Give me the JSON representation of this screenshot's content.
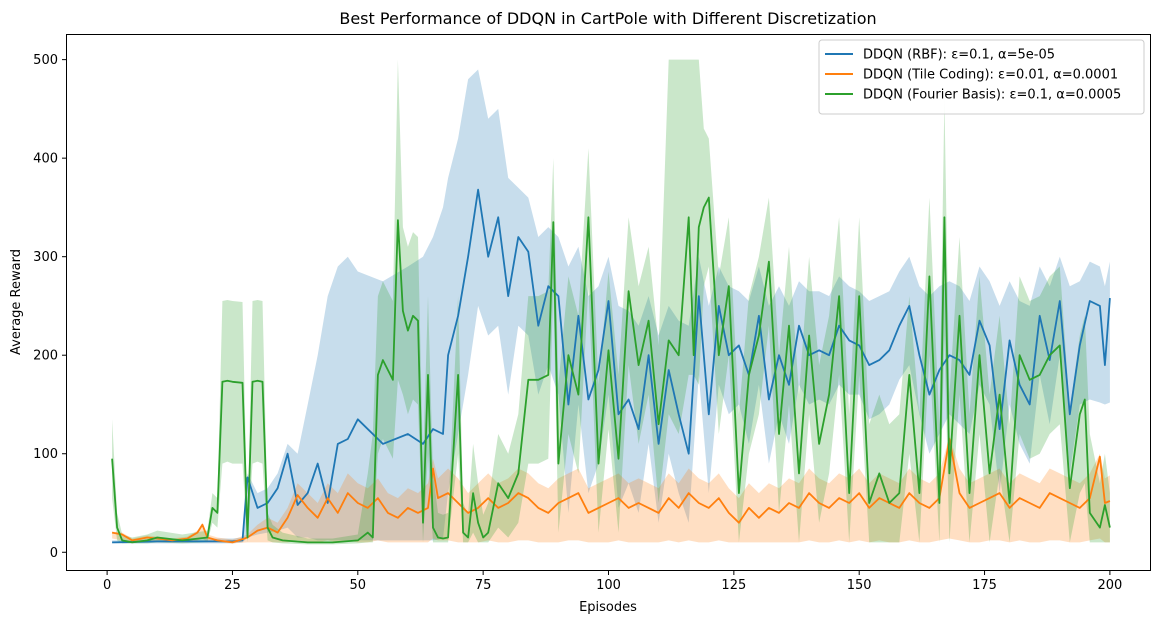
{
  "chart_data": {
    "type": "line",
    "title": "Best Performance of DDQN in CartPole with Different Discretization",
    "xlabel": "Episodes",
    "ylabel": "Average Reward",
    "xlim": [
      -8,
      208
    ],
    "ylim": [
      -18,
      525
    ],
    "xticks": [
      0,
      25,
      50,
      75,
      100,
      125,
      150,
      175,
      200
    ],
    "yticks": [
      0,
      100,
      200,
      300,
      400,
      500
    ],
    "grid": false,
    "legend_position": "top-right",
    "series": [
      {
        "name": "DDQN (RBF): ε=0.1, α=5e-05",
        "color": "#1f77b4",
        "x": [
          1,
          10,
          20,
          25,
          27,
          28,
          30,
          32,
          34,
          36,
          38,
          40,
          42,
          44,
          46,
          48,
          50,
          55,
          60,
          63,
          65,
          67,
          68,
          70,
          72,
          74,
          76,
          78,
          80,
          82,
          84,
          86,
          88,
          90,
          92,
          94,
          96,
          98,
          100,
          102,
          104,
          106,
          108,
          110,
          112,
          114,
          116,
          118,
          120,
          122,
          124,
          126,
          128,
          130,
          132,
          134,
          136,
          138,
          140,
          142,
          144,
          146,
          148,
          150,
          152,
          154,
          156,
          158,
          160,
          162,
          164,
          166,
          168,
          170,
          172,
          174,
          176,
          178,
          180,
          182,
          184,
          186,
          188,
          190,
          192,
          194,
          196,
          198,
          199,
          200
        ],
        "values": [
          10,
          11,
          11,
          11,
          12,
          76,
          45,
          50,
          65,
          100,
          48,
          60,
          90,
          50,
          110,
          115,
          135,
          110,
          120,
          110,
          125,
          120,
          200,
          240,
          300,
          368,
          300,
          340,
          260,
          320,
          305,
          230,
          270,
          260,
          150,
          240,
          155,
          185,
          255,
          140,
          155,
          125,
          200,
          110,
          185,
          140,
          100,
          260,
          140,
          250,
          200,
          210,
          180,
          240,
          155,
          200,
          170,
          230,
          200,
          205,
          200,
          230,
          215,
          210,
          190,
          195,
          205,
          230,
          250,
          200,
          160,
          185,
          200,
          195,
          180,
          235,
          210,
          125,
          215,
          170,
          150,
          240,
          195,
          255,
          140,
          210,
          255,
          250,
          190,
          258
        ],
        "band_upper": [
          12,
          13,
          14,
          14,
          15,
          80,
          60,
          65,
          80,
          110,
          100,
          150,
          200,
          260,
          290,
          300,
          285,
          275,
          290,
          300,
          320,
          350,
          380,
          420,
          480,
          490,
          440,
          450,
          380,
          370,
          360,
          320,
          330,
          320,
          290,
          310,
          260,
          270,
          300,
          250,
          245,
          230,
          260,
          220,
          250,
          235,
          230,
          300,
          250,
          290,
          270,
          265,
          255,
          290,
          250,
          270,
          250,
          275,
          265,
          265,
          260,
          280,
          270,
          265,
          255,
          260,
          265,
          285,
          300,
          270,
          260,
          270,
          275,
          270,
          255,
          290,
          275,
          250,
          275,
          255,
          250,
          290,
          270,
          300,
          270,
          275,
          295,
          290,
          270,
          295
        ],
        "band_lower": [
          9,
          9,
          9,
          9,
          10,
          15,
          18,
          20,
          22,
          25,
          15,
          15,
          12,
          12,
          12,
          12,
          12,
          12,
          12,
          12,
          12,
          14,
          60,
          120,
          180,
          250,
          220,
          230,
          160,
          230,
          220,
          160,
          190,
          160,
          40,
          150,
          60,
          90,
          160,
          45,
          70,
          40,
          110,
          30,
          100,
          60,
          30,
          180,
          60,
          170,
          140,
          150,
          110,
          170,
          90,
          140,
          110,
          170,
          150,
          155,
          150,
          170,
          160,
          160,
          135,
          140,
          150,
          175,
          190,
          140,
          100,
          120,
          140,
          130,
          120,
          170,
          150,
          60,
          150,
          110,
          90,
          180,
          130,
          200,
          80,
          150,
          155,
          152,
          150,
          152
        ]
      },
      {
        "name": "DDQN (Tile Coding): ε=0.01, α=0.0001",
        "color": "#ff7f0e",
        "x": [
          1,
          3,
          5,
          8,
          10,
          13,
          16,
          18,
          19,
          20,
          22,
          25,
          28,
          30,
          32,
          34,
          36,
          38,
          40,
          42,
          44,
          46,
          48,
          50,
          52,
          54,
          56,
          58,
          60,
          62,
          64,
          65,
          66,
          68,
          70,
          72,
          74,
          76,
          78,
          80,
          82,
          84,
          86,
          88,
          90,
          92,
          94,
          96,
          98,
          100,
          102,
          104,
          106,
          108,
          110,
          112,
          114,
          116,
          118,
          120,
          122,
          124,
          126,
          128,
          130,
          132,
          134,
          136,
          138,
          140,
          142,
          144,
          146,
          148,
          150,
          152,
          154,
          156,
          158,
          160,
          162,
          164,
          166,
          168,
          170,
          172,
          174,
          176,
          178,
          180,
          182,
          184,
          186,
          188,
          190,
          192,
          194,
          196,
          198,
          199,
          200
        ],
        "values": [
          20,
          18,
          12,
          15,
          14,
          12,
          14,
          20,
          28,
          15,
          12,
          10,
          15,
          22,
          25,
          20,
          35,
          58,
          45,
          35,
          55,
          40,
          60,
          50,
          45,
          55,
          40,
          35,
          45,
          40,
          45,
          85,
          55,
          60,
          50,
          40,
          45,
          55,
          45,
          50,
          60,
          55,
          45,
          40,
          50,
          55,
          60,
          40,
          45,
          50,
          55,
          45,
          50,
          45,
          40,
          55,
          45,
          60,
          50,
          45,
          55,
          40,
          30,
          45,
          35,
          45,
          40,
          50,
          45,
          60,
          50,
          45,
          55,
          50,
          60,
          45,
          55,
          50,
          45,
          60,
          50,
          45,
          55,
          115,
          60,
          45,
          50,
          55,
          60,
          45,
          55,
          50,
          45,
          60,
          55,
          50,
          45,
          55,
          97,
          50,
          52
        ],
        "band_upper": [
          21,
          20,
          14,
          17,
          16,
          14,
          16,
          22,
          30,
          18,
          15,
          13,
          18,
          28,
          35,
          30,
          45,
          70,
          60,
          50,
          70,
          60,
          80,
          70,
          65,
          75,
          60,
          55,
          65,
          60,
          70,
          95,
          75,
          85,
          75,
          60,
          70,
          80,
          70,
          75,
          85,
          80,
          70,
          65,
          75,
          80,
          85,
          65,
          70,
          75,
          80,
          70,
          75,
          70,
          65,
          80,
          70,
          85,
          75,
          70,
          80,
          65,
          55,
          70,
          60,
          70,
          65,
          75,
          70,
          85,
          75,
          70,
          80,
          75,
          85,
          70,
          80,
          75,
          70,
          85,
          75,
          70,
          80,
          118,
          85,
          70,
          75,
          80,
          85,
          70,
          80,
          75,
          70,
          85,
          80,
          75,
          70,
          80,
          100,
          75,
          78
        ],
        "band_lower": [
          14,
          12,
          10,
          10,
          10,
          10,
          10,
          12,
          14,
          10,
          10,
          9,
          10,
          10,
          10,
          10,
          10,
          12,
          10,
          10,
          12,
          10,
          12,
          10,
          10,
          12,
          10,
          10,
          10,
          10,
          10,
          14,
          12,
          12,
          10,
          10,
          10,
          12,
          10,
          10,
          12,
          12,
          10,
          10,
          10,
          12,
          12,
          10,
          10,
          10,
          12,
          10,
          10,
          10,
          10,
          12,
          10,
          12,
          10,
          10,
          12,
          10,
          10,
          10,
          10,
          10,
          10,
          10,
          10,
          12,
          10,
          10,
          12,
          10,
          12,
          10,
          12,
          10,
          10,
          12,
          10,
          10,
          12,
          14,
          12,
          10,
          10,
          12,
          12,
          10,
          12,
          10,
          10,
          12,
          12,
          10,
          10,
          12,
          14,
          10,
          10
        ]
      },
      {
        "name": "DDQN (Fourier Basis): ε=0.1, α=0.0005",
        "color": "#2ca02c",
        "x": [
          1,
          2,
          3,
          5,
          8,
          10,
          15,
          20,
          21,
          22,
          23,
          24,
          25,
          27,
          28,
          29,
          30,
          31,
          32,
          33,
          35,
          40,
          45,
          50,
          52,
          53,
          54,
          55,
          56,
          57,
          58,
          59,
          60,
          61,
          62,
          63,
          64,
          65,
          66,
          67,
          68,
          70,
          71,
          72,
          73,
          74,
          75,
          76,
          78,
          80,
          82,
          84,
          86,
          88,
          89,
          90,
          92,
          94,
          96,
          98,
          100,
          102,
          104,
          106,
          108,
          110,
          112,
          114,
          116,
          117,
          118,
          119,
          120,
          122,
          124,
          126,
          128,
          130,
          132,
          134,
          136,
          138,
          140,
          142,
          144,
          146,
          148,
          150,
          152,
          154,
          156,
          158,
          160,
          162,
          164,
          166,
          167,
          168,
          170,
          172,
          174,
          176,
          178,
          180,
          182,
          184,
          186,
          188,
          190,
          192,
          194,
          195,
          196,
          198,
          199,
          200
        ],
        "values": [
          95,
          25,
          12,
          10,
          12,
          15,
          12,
          15,
          45,
          40,
          173,
          174,
          173,
          172,
          15,
          173,
          174,
          173,
          25,
          15,
          12,
          10,
          10,
          12,
          20,
          15,
          180,
          195,
          185,
          175,
          337,
          245,
          225,
          240,
          235,
          30,
          180,
          25,
          15,
          14,
          15,
          180,
          20,
          15,
          60,
          30,
          15,
          20,
          70,
          55,
          80,
          175,
          175,
          180,
          335,
          90,
          200,
          160,
          340,
          90,
          205,
          95,
          265,
          190,
          235,
          130,
          215,
          200,
          340,
          200,
          330,
          350,
          360,
          200,
          270,
          60,
          180,
          220,
          295,
          120,
          230,
          80,
          220,
          110,
          160,
          260,
          60,
          260,
          50,
          80,
          50,
          60,
          180,
          60,
          280,
          50,
          340,
          80,
          240,
          60,
          200,
          80,
          160,
          50,
          200,
          175,
          180,
          200,
          210,
          65,
          140,
          155,
          40,
          25,
          48,
          25
        ],
        "band_upper": [
          135,
          40,
          18,
          15,
          18,
          22,
          18,
          22,
          60,
          55,
          255,
          256,
          255,
          254,
          30,
          255,
          256,
          255,
          40,
          28,
          20,
          14,
          14,
          18,
          80,
          120,
          260,
          275,
          265,
          255,
          500,
          330,
          310,
          325,
          320,
          90,
          260,
          80,
          40,
          38,
          40,
          260,
          50,
          38,
          110,
          70,
          38,
          50,
          120,
          100,
          140,
          260,
          260,
          265,
          400,
          170,
          280,
          240,
          410,
          170,
          285,
          180,
          340,
          270,
          310,
          210,
          500,
          500,
          500,
          500,
          500,
          430,
          420,
          280,
          340,
          140,
          260,
          300,
          360,
          200,
          310,
          160,
          300,
          190,
          240,
          340,
          140,
          340,
          130,
          160,
          130,
          140,
          260,
          140,
          360,
          130,
          460,
          160,
          320,
          140,
          280,
          160,
          240,
          130,
          280,
          255,
          260,
          280,
          290,
          145,
          220,
          240,
          120,
          70,
          100,
          60
        ],
        "band_lower": [
          55,
          12,
          9,
          9,
          9,
          10,
          9,
          10,
          30,
          25,
          90,
          92,
          90,
          90,
          10,
          90,
          92,
          90,
          12,
          10,
          9,
          8,
          8,
          9,
          10,
          10,
          100,
          115,
          105,
          95,
          175,
          160,
          140,
          155,
          150,
          10,
          100,
          10,
          10,
          10,
          10,
          100,
          10,
          10,
          20,
          10,
          10,
          10,
          25,
          15,
          30,
          90,
          90,
          95,
          270,
          20,
          120,
          80,
          270,
          20,
          125,
          20,
          190,
          110,
          160,
          50,
          140,
          120,
          180,
          180,
          170,
          270,
          290,
          120,
          200,
          10,
          100,
          140,
          230,
          40,
          150,
          10,
          140,
          30,
          80,
          180,
          10,
          180,
          10,
          10,
          10,
          10,
          100,
          10,
          200,
          10,
          220,
          10,
          160,
          10,
          120,
          10,
          80,
          10,
          120,
          95,
          100,
          120,
          130,
          10,
          60,
          70,
          10,
          10,
          10,
          10
        ]
      }
    ]
  }
}
